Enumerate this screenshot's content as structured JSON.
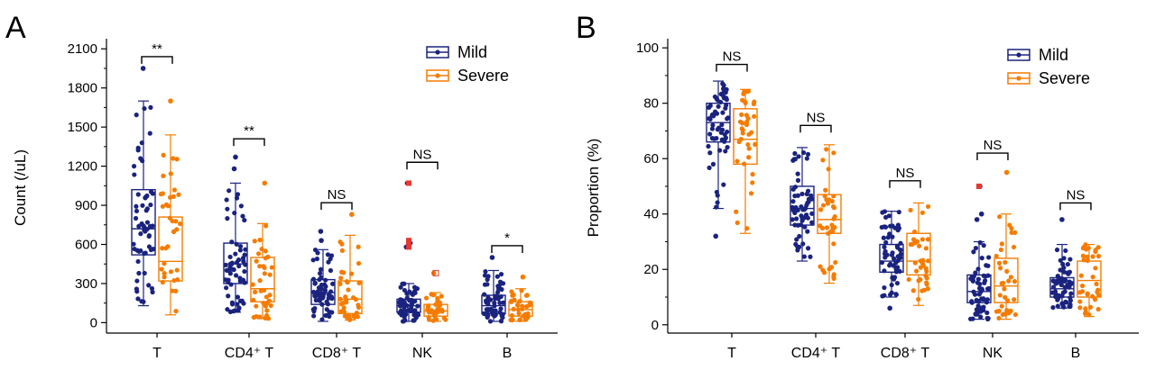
{
  "colors": {
    "Mild": "#1a237e",
    "Severe": "#f57c00",
    "outlier": "#e53935"
  },
  "chart_data": [
    {
      "panel_label": "A",
      "type": "box",
      "ylabel": "Count (/uL)",
      "ylim": [
        -80,
        2150
      ],
      "yticks": [
        0,
        300,
        600,
        900,
        1200,
        1500,
        1800,
        2100
      ],
      "categories": [
        "T",
        "CD4⁺ T",
        "CD8⁺ T",
        "NK",
        "B"
      ],
      "legend": {
        "placement": "top-right",
        "entries": [
          "Mild",
          "Severe"
        ]
      },
      "series": [
        {
          "name": "Mild",
          "boxes": [
            {
              "min": 130,
              "q1": 520,
              "median": 720,
              "q3": 1020,
              "max": 1700,
              "outliers": [
                1950
              ]
            },
            {
              "min": 80,
              "q1": 300,
              "median": 450,
              "q3": 610,
              "max": 1070,
              "outliers": [
                1180,
                1270
              ]
            },
            {
              "min": 10,
              "q1": 140,
              "median": 230,
              "q3": 330,
              "max": 560,
              "outliers": [
                630,
                700
              ]
            },
            {
              "min": 10,
              "q1": 80,
              "median": 130,
              "q3": 180,
              "max": 300,
              "outliers": [
                580,
                610,
                630,
                1070
              ]
            },
            {
              "min": 10,
              "q1": 70,
              "median": 130,
              "q3": 210,
              "max": 400,
              "outliers": [
                500
              ]
            }
          ]
        },
        {
          "name": "Severe",
          "boxes": [
            {
              "min": 60,
              "q1": 320,
              "median": 470,
              "q3": 810,
              "max": 1440,
              "outliers": [
                1700
              ]
            },
            {
              "min": 30,
              "q1": 160,
              "median": 260,
              "q3": 500,
              "max": 760,
              "outliers": [
                1070
              ]
            },
            {
              "min": 20,
              "q1": 70,
              "median": 180,
              "q3": 320,
              "max": 670,
              "outliers": [
                830
              ]
            },
            {
              "min": 10,
              "q1": 50,
              "median": 90,
              "q3": 140,
              "max": 230,
              "outliers": [
                380
              ]
            },
            {
              "min": 10,
              "q1": 50,
              "median": 100,
              "q3": 160,
              "max": 260,
              "outliers": [
                350
              ]
            }
          ]
        }
      ],
      "significance": [
        "**",
        "**",
        "NS",
        "NS",
        "*"
      ],
      "significance_y": [
        2040,
        1410,
        920,
        1230,
        590
      ]
    },
    {
      "panel_label": "B",
      "type": "box",
      "ylabel": "Proportion (%)",
      "ylim": [
        -3,
        102
      ],
      "yticks": [
        0,
        20,
        40,
        60,
        80,
        100
      ],
      "categories": [
        "T",
        "CD4⁺ T",
        "CD8⁺ T",
        "NK",
        "B"
      ],
      "legend": {
        "placement": "top-right",
        "entries": [
          "Mild",
          "Severe"
        ]
      },
      "series": [
        {
          "name": "Mild",
          "boxes": [
            {
              "min": 42,
              "q1": 66,
              "median": 73,
              "q3": 80,
              "max": 88,
              "outliers": [
                32
              ]
            },
            {
              "min": 23,
              "q1": 36,
              "median": 42,
              "q3": 50,
              "max": 64,
              "outliers": []
            },
            {
              "min": 10,
              "q1": 19,
              "median": 23,
              "q3": 29,
              "max": 41,
              "outliers": [
                6
              ]
            },
            {
              "min": 2,
              "q1": 8,
              "median": 12,
              "q3": 18,
              "max": 30,
              "outliers": [
                38,
                40,
                50
              ]
            },
            {
              "min": 6,
              "q1": 10,
              "median": 13,
              "q3": 17,
              "max": 29,
              "outliers": [
                38
              ]
            }
          ]
        },
        {
          "name": "Severe",
          "boxes": [
            {
              "min": 33,
              "q1": 58,
              "median": 67,
              "q3": 78,
              "max": 85,
              "outliers": []
            },
            {
              "min": 15,
              "q1": 33,
              "median": 38,
              "q3": 47,
              "max": 65,
              "outliers": []
            },
            {
              "min": 7,
              "q1": 18,
              "median": 23,
              "q3": 33,
              "max": 44,
              "outliers": []
            },
            {
              "min": 2,
              "q1": 8,
              "median": 14,
              "q3": 24,
              "max": 40,
              "outliers": [
                55
              ]
            },
            {
              "min": 3,
              "q1": 10,
              "median": 16,
              "q3": 23,
              "max": 29,
              "outliers": []
            }
          ]
        }
      ],
      "significance": [
        "NS",
        "NS",
        "NS",
        "NS",
        "NS"
      ],
      "significance_y": [
        94,
        72,
        52,
        62,
        44
      ]
    }
  ]
}
